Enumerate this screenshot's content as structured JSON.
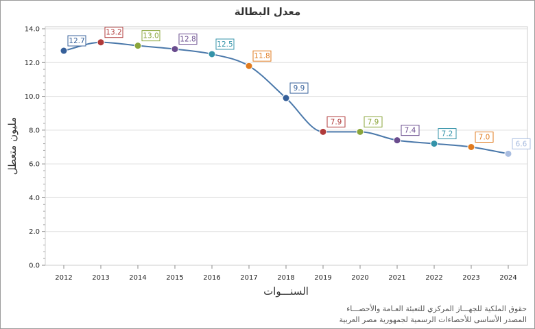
{
  "chart_data": {
    "type": "line",
    "title": "معدل البطالة",
    "xlabel": "السنـــوات",
    "ylabel": "مليون متعطل",
    "categories": [
      "2012",
      "2013",
      "2014",
      "2015",
      "2016",
      "2017",
      "2018",
      "2019",
      "2020",
      "2021",
      "2022",
      "2023",
      "2024"
    ],
    "values": [
      12.7,
      13.2,
      13.0,
      12.8,
      12.5,
      11.8,
      9.9,
      7.9,
      7.9,
      7.4,
      7.2,
      7.0,
      6.6
    ],
    "value_labels": [
      "12.7",
      "13.2",
      "13.0",
      "12.8",
      "12.5",
      "11.8",
      "9.9",
      "7.9",
      "7.9",
      "7.4",
      "7.2",
      "7.0",
      "6.6"
    ],
    "point_colors": [
      "#36609a",
      "#b03a3a",
      "#8aa53a",
      "#6a4c8e",
      "#3493a9",
      "#e07b1f",
      "#36609a",
      "#b03a3a",
      "#8aa53a",
      "#6a4c8e",
      "#3493a9",
      "#e07b1f",
      "#a9bde0"
    ],
    "line_color": "#4a78aa",
    "ylim": [
      0,
      14
    ],
    "yticks": [
      "0.0",
      "2.0",
      "4.0",
      "6.0",
      "8.0",
      "10.0",
      "12.0",
      "14.0"
    ],
    "grid": true
  },
  "footer": {
    "line1": "حقوق الملكية للجهـــاز المركزي للتعبئة العـامة والأحصـــاء",
    "line2": "المصدر الأساسى للأحصاءات الرسمية لجمهورية مصر العربية"
  }
}
